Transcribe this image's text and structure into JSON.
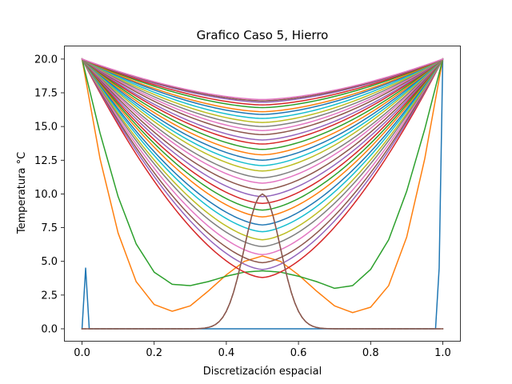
{
  "chart_data": {
    "type": "line",
    "title": "Grafico Caso 5, Hierro",
    "xlabel": "Discretización espacial",
    "ylabel": "Temperatura °C",
    "xlim": [
      -0.05,
      1.05
    ],
    "ylim": [
      -0.95,
      21.0
    ],
    "xticks": [
      0.0,
      0.2,
      0.4,
      0.6,
      0.8,
      1.0
    ],
    "xtick_labels": [
      "0.0",
      "0.2",
      "0.4",
      "0.6",
      "0.8",
      "1.0"
    ],
    "yticks": [
      0.0,
      2.5,
      5.0,
      7.5,
      10.0,
      12.5,
      15.0,
      17.5,
      20.0
    ],
    "ytick_labels": [
      "0.0",
      "2.5",
      "5.0",
      "7.5",
      "10.0",
      "12.5",
      "15.0",
      "17.5",
      "20.0"
    ],
    "grid": false,
    "legend": false,
    "boundary_temperature": 20.0,
    "initial_pulse": {
      "center": 0.5,
      "peak": 10.0,
      "width": 0.07
    },
    "n_nodes": 101,
    "series": [
      {
        "label_index": 0,
        "color": "#1f77b4",
        "x": [
          0.0,
          0.01,
          0.02,
          0.98,
          0.99,
          1.0
        ],
        "y": [
          0.0,
          4.5,
          0.0,
          0.0,
          4.5,
          20.0
        ]
      },
      {
        "label_index": 1,
        "color": "#ff7f0e",
        "x": [
          0.0,
          0.05,
          0.1,
          0.15,
          0.2,
          0.25,
          0.3,
          0.35,
          0.4,
          0.45,
          0.5,
          0.55,
          0.6,
          0.65,
          0.7,
          0.75,
          0.8,
          0.85,
          0.9,
          0.95,
          1.0
        ],
        "y": [
          20.0,
          12.6,
          7.1,
          3.5,
          1.8,
          1.3,
          1.7,
          2.8,
          4.0,
          5.0,
          5.4,
          5.0,
          4.0,
          2.8,
          1.7,
          1.2,
          1.6,
          3.2,
          6.8,
          12.6,
          20.0
        ]
      },
      {
        "label_index": 2,
        "color": "#2ca02c",
        "x": [
          0.0,
          0.05,
          0.1,
          0.15,
          0.2,
          0.25,
          0.3,
          0.35,
          0.4,
          0.45,
          0.5,
          0.55,
          0.6,
          0.65,
          0.7,
          0.75,
          0.8,
          0.85,
          0.9,
          0.95,
          1.0
        ],
        "y": [
          20.0,
          14.5,
          9.8,
          6.3,
          4.2,
          3.3,
          3.2,
          3.5,
          3.9,
          4.2,
          4.3,
          4.2,
          3.9,
          3.5,
          3.0,
          3.2,
          4.4,
          6.6,
          10.2,
          14.8,
          20.0
        ]
      },
      {
        "label_index": 3,
        "color": "#d62728",
        "min": 3.8
      },
      {
        "label_index": 4,
        "color": "#9467bd",
        "min": 4.4
      },
      {
        "label_index": 5,
        "color": "#8c564b",
        "min": 4.9
      },
      {
        "label_index": 6,
        "color": "#e377c2",
        "min": 5.5
      },
      {
        "label_index": 7,
        "color": "#7f7f7f",
        "min": 6.1
      },
      {
        "label_index": 8,
        "color": "#bcbd22",
        "min": 6.6
      },
      {
        "label_index": 9,
        "color": "#17becf",
        "min": 7.2
      },
      {
        "label_index": 10,
        "color": "#1f77b4",
        "min": 7.7
      },
      {
        "label_index": 11,
        "color": "#ff7f0e",
        "min": 8.3
      },
      {
        "label_index": 12,
        "color": "#2ca02c",
        "min": 8.8
      },
      {
        "label_index": 13,
        "color": "#d62728",
        "min": 9.3
      },
      {
        "label_index": 14,
        "color": "#9467bd",
        "min": 9.8
      },
      {
        "label_index": 15,
        "color": "#8c564b",
        "min": 10.3
      },
      {
        "label_index": 16,
        "color": "#e377c2",
        "min": 10.8
      },
      {
        "label_index": 17,
        "color": "#7f7f7f",
        "min": 11.2
      },
      {
        "label_index": 18,
        "color": "#bcbd22",
        "min": 11.7
      },
      {
        "label_index": 19,
        "color": "#17becf",
        "min": 12.1
      },
      {
        "label_index": 20,
        "color": "#1f77b4",
        "min": 12.5
      },
      {
        "label_index": 21,
        "color": "#ff7f0e",
        "min": 12.9
      },
      {
        "label_index": 22,
        "color": "#2ca02c",
        "min": 13.3
      },
      {
        "label_index": 23,
        "color": "#d62728",
        "min": 13.7
      },
      {
        "label_index": 24,
        "color": "#9467bd",
        "min": 14.0
      },
      {
        "label_index": 25,
        "color": "#8c564b",
        "min": 14.4
      },
      {
        "label_index": 26,
        "color": "#e377c2",
        "min": 14.7
      },
      {
        "label_index": 27,
        "color": "#7f7f7f",
        "min": 15.0
      },
      {
        "label_index": 28,
        "color": "#bcbd22",
        "min": 15.3
      },
      {
        "label_index": 29,
        "color": "#17becf",
        "min": 15.6
      },
      {
        "label_index": 30,
        "color": "#1f77b4",
        "min": 15.9
      },
      {
        "label_index": 31,
        "color": "#ff7f0e",
        "min": 16.1
      },
      {
        "label_index": 32,
        "color": "#2ca02c",
        "min": 16.4
      },
      {
        "label_index": 33,
        "color": "#d62728",
        "min": 16.6
      },
      {
        "label_index": 34,
        "color": "#9467bd",
        "min": 16.8
      },
      {
        "label_index": 35,
        "color": "#8c564b",
        "min": 16.9
      },
      {
        "label_index": 36,
        "color": "#e377c2",
        "min": 17.0
      },
      {
        "label_index": 37,
        "color": "#7f7f7f",
        "pulse": true
      },
      {
        "label_index": 38,
        "color": "#8c564b",
        "pulse": true
      }
    ]
  }
}
